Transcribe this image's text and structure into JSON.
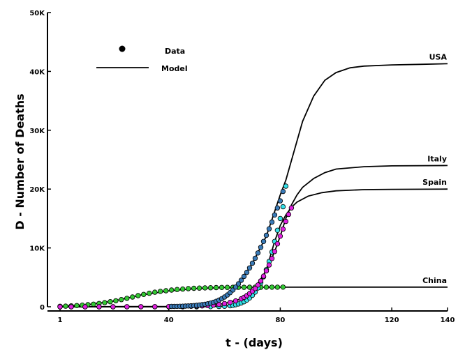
{
  "chart_data": {
    "type": "line",
    "xlabel": "t - (days)",
    "ylabel": "D - Number of Deaths",
    "xlim": [
      0,
      140
    ],
    "ylim": [
      0,
      50000
    ],
    "x_ticks": [
      1,
      40,
      80,
      120,
      140
    ],
    "x_tick_labels": [
      "1",
      "40",
      "80",
      "120",
      "140"
    ],
    "y_ticks": [
      0,
      10000,
      20000,
      30000,
      40000,
      50000
    ],
    "y_tick_labels": [
      "0",
      "10K",
      "20K",
      "30K",
      "40K",
      "50K"
    ],
    "grid": false,
    "legend": {
      "position": "top-left",
      "entries": [
        {
          "label": "Data",
          "marker": "filled-circle"
        },
        {
          "label": "Model",
          "marker": "line"
        }
      ]
    },
    "series": [
      {
        "name": "USA",
        "color": "#3a7bb8",
        "data_points": [
          [
            41,
            55
          ],
          [
            42,
            60
          ],
          [
            43,
            70
          ],
          [
            44,
            85
          ],
          [
            45,
            100
          ],
          [
            46,
            120
          ],
          [
            47,
            140
          ],
          [
            48,
            170
          ],
          [
            49,
            200
          ],
          [
            50,
            240
          ],
          [
            51,
            290
          ],
          [
            52,
            350
          ],
          [
            53,
            420
          ],
          [
            54,
            510
          ],
          [
            55,
            620
          ],
          [
            56,
            760
          ],
          [
            57,
            930
          ],
          [
            58,
            1130
          ],
          [
            59,
            1370
          ],
          [
            60,
            1660
          ],
          [
            61,
            2000
          ],
          [
            62,
            2400
          ],
          [
            63,
            2850
          ],
          [
            64,
            3350
          ],
          [
            65,
            3900
          ],
          [
            66,
            4500
          ],
          [
            67,
            5150
          ],
          [
            68,
            5850
          ],
          [
            69,
            6600
          ],
          [
            70,
            7400
          ],
          [
            71,
            8250
          ],
          [
            72,
            9150
          ],
          [
            73,
            10100
          ],
          [
            74,
            11100
          ],
          [
            75,
            12150
          ],
          [
            76,
            13250
          ],
          [
            77,
            14400
          ],
          [
            78,
            15600
          ],
          [
            79,
            16800
          ],
          [
            80,
            18000
          ],
          [
            81,
            19600
          ]
        ],
        "model": [
          [
            1,
            0
          ],
          [
            40,
            40
          ],
          [
            55,
            600
          ],
          [
            60,
            1600
          ],
          [
            65,
            3900
          ],
          [
            70,
            7400
          ],
          [
            75,
            12000
          ],
          [
            80,
            19000
          ],
          [
            82,
            21500
          ],
          [
            85,
            26500
          ],
          [
            88,
            31500
          ],
          [
            92,
            35800
          ],
          [
            96,
            38500
          ],
          [
            100,
            39800
          ],
          [
            105,
            40600
          ],
          [
            110,
            40900
          ],
          [
            120,
            41100
          ],
          [
            130,
            41200
          ],
          [
            140,
            41300
          ]
        ],
        "end_label": "USA"
      },
      {
        "name": "Italy",
        "color": "#e020e0",
        "data_points": [
          [
            1,
            5
          ],
          [
            5,
            5
          ],
          [
            10,
            5
          ],
          [
            15,
            5
          ],
          [
            20,
            5
          ],
          [
            25,
            10
          ],
          [
            30,
            15
          ],
          [
            35,
            20
          ],
          [
            40,
            30
          ],
          [
            45,
            50
          ],
          [
            48,
            80
          ],
          [
            50,
            110
          ],
          [
            52,
            150
          ],
          [
            54,
            210
          ],
          [
            56,
            290
          ],
          [
            58,
            400
          ],
          [
            60,
            550
          ],
          [
            62,
            750
          ],
          [
            64,
            1000
          ],
          [
            66,
            1350
          ],
          [
            67,
            1600
          ],
          [
            68,
            1900
          ],
          [
            69,
            2250
          ],
          [
            70,
            2650
          ],
          [
            71,
            3100
          ],
          [
            72,
            3700
          ],
          [
            73,
            4400
          ],
          [
            74,
            5200
          ],
          [
            75,
            6100
          ],
          [
            76,
            7100
          ],
          [
            77,
            8200
          ],
          [
            78,
            9400
          ],
          [
            79,
            10700
          ],
          [
            80,
            12000
          ],
          [
            81,
            13200
          ],
          [
            82,
            14500
          ],
          [
            83,
            15700
          ],
          [
            84,
            16800
          ]
        ],
        "model": [
          [
            1,
            0
          ],
          [
            40,
            30
          ],
          [
            55,
            250
          ],
          [
            60,
            550
          ],
          [
            65,
            1200
          ],
          [
            70,
            2650
          ],
          [
            75,
            6100
          ],
          [
            78,
            9400
          ],
          [
            80,
            12000
          ],
          [
            82,
            15000
          ],
          [
            84,
            17300
          ],
          [
            86,
            19000
          ],
          [
            88,
            20300
          ],
          [
            92,
            21800
          ],
          [
            96,
            22800
          ],
          [
            100,
            23400
          ],
          [
            110,
            23800
          ],
          [
            120,
            23950
          ],
          [
            140,
            24000
          ]
        ],
        "end_label": "Italy"
      },
      {
        "name": "Spain",
        "color": "#33e0e8",
        "data_points": [
          [
            1,
            0
          ],
          [
            5,
            0
          ],
          [
            10,
            0
          ],
          [
            15,
            0
          ],
          [
            20,
            0
          ],
          [
            25,
            0
          ],
          [
            30,
            0
          ],
          [
            35,
            0
          ],
          [
            40,
            0
          ],
          [
            45,
            0
          ],
          [
            50,
            5
          ],
          [
            55,
            20
          ],
          [
            58,
            50
          ],
          [
            60,
            100
          ],
          [
            62,
            180
          ],
          [
            63,
            250
          ],
          [
            64,
            350
          ],
          [
            65,
            480
          ],
          [
            66,
            650
          ],
          [
            67,
            870
          ],
          [
            68,
            1150
          ],
          [
            69,
            1500
          ],
          [
            70,
            1950
          ],
          [
            71,
            2500
          ],
          [
            72,
            3200
          ],
          [
            73,
            4050
          ],
          [
            74,
            5100
          ],
          [
            75,
            6300
          ],
          [
            76,
            7700
          ],
          [
            77,
            9300
          ],
          [
            78,
            11100
          ],
          [
            79,
            13000
          ],
          [
            80,
            15000
          ],
          [
            81,
            17000
          ],
          [
            82,
            20500
          ]
        ],
        "model": [
          [
            1,
            0
          ],
          [
            50,
            0
          ],
          [
            60,
            100
          ],
          [
            65,
            480
          ],
          [
            70,
            1950
          ],
          [
            75,
            6300
          ],
          [
            78,
            11100
          ],
          [
            80,
            13800
          ],
          [
            82,
            15600
          ],
          [
            84,
            16900
          ],
          [
            86,
            17800
          ],
          [
            90,
            18800
          ],
          [
            95,
            19400
          ],
          [
            100,
            19700
          ],
          [
            110,
            19900
          ],
          [
            120,
            19950
          ],
          [
            140,
            20000
          ]
        ],
        "end_label": "Spain"
      },
      {
        "name": "China",
        "color": "#33c933",
        "data_points": [
          [
            1,
            80
          ],
          [
            3,
            110
          ],
          [
            5,
            150
          ],
          [
            7,
            200
          ],
          [
            9,
            270
          ],
          [
            11,
            350
          ],
          [
            13,
            440
          ],
          [
            15,
            560
          ],
          [
            17,
            700
          ],
          [
            19,
            860
          ],
          [
            21,
            1020
          ],
          [
            23,
            1220
          ],
          [
            25,
            1430
          ],
          [
            27,
            1660
          ],
          [
            29,
            1890
          ],
          [
            31,
            2100
          ],
          [
            33,
            2300
          ],
          [
            35,
            2480
          ],
          [
            37,
            2620
          ],
          [
            39,
            2730
          ],
          [
            41,
            2840
          ],
          [
            43,
            2940
          ],
          [
            45,
            3010
          ],
          [
            47,
            3080
          ],
          [
            49,
            3140
          ],
          [
            51,
            3180
          ],
          [
            53,
            3210
          ],
          [
            55,
            3240
          ],
          [
            57,
            3260
          ],
          [
            59,
            3280
          ],
          [
            61,
            3290
          ],
          [
            63,
            3300
          ],
          [
            65,
            3310
          ],
          [
            67,
            3310
          ],
          [
            69,
            3320
          ],
          [
            71,
            3320
          ],
          [
            73,
            3320
          ],
          [
            75,
            3330
          ],
          [
            77,
            3330
          ],
          [
            79,
            3330
          ],
          [
            81,
            3340
          ]
        ],
        "model": [
          [
            1,
            80
          ],
          [
            10,
            300
          ],
          [
            20,
            950
          ],
          [
            30,
            2000
          ],
          [
            40,
            2700
          ],
          [
            50,
            3100
          ],
          [
            60,
            3280
          ],
          [
            70,
            3320
          ],
          [
            80,
            3330
          ],
          [
            100,
            3340
          ],
          [
            120,
            3340
          ],
          [
            140,
            3340
          ]
        ],
        "end_label": "China"
      }
    ]
  }
}
